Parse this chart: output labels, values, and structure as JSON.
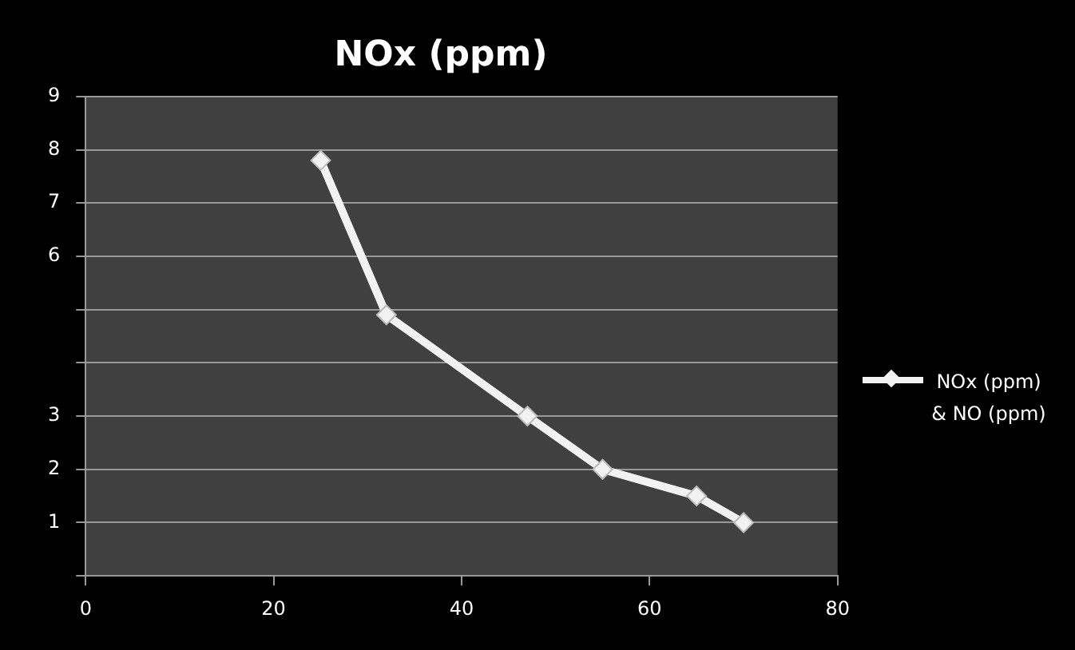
{
  "chart_data": {
    "type": "line",
    "title": "NOx (ppm)",
    "x": [
      25,
      32,
      47,
      55,
      65,
      70
    ],
    "series": [
      {
        "name": "NOx (ppm) & NO (ppm)",
        "color": "#f2f2f2",
        "values": [
          7.8,
          4.9,
          3.0,
          2.0,
          1.5,
          1.0
        ]
      }
    ],
    "xlim": [
      0,
      80
    ],
    "xticks": [
      0,
      20,
      40,
      60,
      80
    ],
    "ylim": [
      0,
      9
    ],
    "yticks": [
      {
        "value": 0,
        "label": null
      },
      1,
      2,
      3,
      {
        "value": 4,
        "label": null
      },
      {
        "value": 5,
        "label": null
      },
      6,
      7,
      8,
      9
    ],
    "grid": "y",
    "legend": "right",
    "marker": "diamond",
    "line_style": "solid"
  }
}
